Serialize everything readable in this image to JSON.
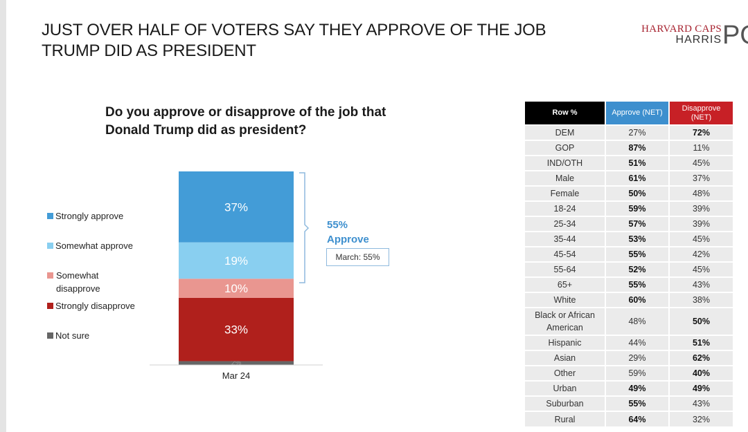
{
  "page": {
    "title": "JUST OVER HALF OF VOTERS SAY THEY APPROVE OF THE JOB TRUMP DID AS PRESIDENT",
    "logo": {
      "line1": "HARVARD CAPS",
      "line2": "HARRIS",
      "mark": "PO"
    },
    "question": "Do you approve or disapprove of the job that Donald Trump did as president?"
  },
  "chart_data": {
    "type": "bar",
    "stacked": true,
    "categories": [
      "Mar 24"
    ],
    "series": [
      {
        "name": "Strongly approve",
        "values": [
          37
        ],
        "label": "37%",
        "color": "#439cd7"
      },
      {
        "name": "Somewhat approve",
        "values": [
          19
        ],
        "label": "19%",
        "color": "#89cff0"
      },
      {
        "name": "Somewhat disapprove",
        "values": [
          10
        ],
        "label": "10%",
        "color": "#e99690"
      },
      {
        "name": "Strongly disapprove",
        "values": [
          33
        ],
        "label": "33%",
        "color": "#b0201c"
      },
      {
        "name": "Not sure",
        "values": [
          2
        ],
        "label": "2%",
        "color": "#666666"
      }
    ],
    "legend": [
      {
        "name": "Strongly approve",
        "color": "#439cd7"
      },
      {
        "name": "Somewhat approve",
        "color": "#89cff0"
      },
      {
        "name": "Somewhat disapprove",
        "color": "#e99690"
      },
      {
        "name": "Strongly disapprove",
        "color": "#b0201c"
      },
      {
        "name": "Not sure",
        "color": "#666666"
      }
    ],
    "annotation": {
      "value": "55%",
      "label": "Approve",
      "comparison": "March: 55%"
    },
    "xlabel": "",
    "ylabel": "",
    "ylim": [
      0,
      101
    ]
  },
  "table": {
    "headers": {
      "row": "Row %",
      "approve": "Approve (NET)",
      "disapprove": "Disapprove (NET)"
    },
    "rows": [
      {
        "label": "DEM",
        "approve": "27%",
        "disapprove": "72%",
        "bold": "disapprove"
      },
      {
        "label": "GOP",
        "approve": "87%",
        "disapprove": "11%",
        "bold": "approve"
      },
      {
        "label": "IND/OTH",
        "approve": "51%",
        "disapprove": "45%",
        "bold": "approve"
      },
      {
        "label": "Male",
        "approve": "61%",
        "disapprove": "37%",
        "bold": "approve"
      },
      {
        "label": "Female",
        "approve": "50%",
        "disapprove": "48%",
        "bold": "approve"
      },
      {
        "label": "18-24",
        "approve": "59%",
        "disapprove": "39%",
        "bold": "approve"
      },
      {
        "label": "25-34",
        "approve": "57%",
        "disapprove": "39%",
        "bold": "approve"
      },
      {
        "label": "35-44",
        "approve": "53%",
        "disapprove": "45%",
        "bold": "approve"
      },
      {
        "label": "45-54",
        "approve": "55%",
        "disapprove": "42%",
        "bold": "approve"
      },
      {
        "label": "55-64",
        "approve": "52%",
        "disapprove": "45%",
        "bold": "approve"
      },
      {
        "label": "65+",
        "approve": "55%",
        "disapprove": "43%",
        "bold": "approve"
      },
      {
        "label": "White",
        "approve": "60%",
        "disapprove": "38%",
        "bold": "approve"
      },
      {
        "label": "Black or African American",
        "approve": "48%",
        "disapprove": "50%",
        "bold": "disapprove"
      },
      {
        "label": "Hispanic",
        "approve": "44%",
        "disapprove": "51%",
        "bold": "disapprove"
      },
      {
        "label": "Asian",
        "approve": "29%",
        "disapprove": "62%",
        "bold": "disapprove"
      },
      {
        "label": "Other",
        "approve": "59%",
        "disapprove": "40%",
        "bold": "disapprove"
      },
      {
        "label": "Urban",
        "approve": "49%",
        "disapprove": "49%",
        "bold": "both"
      },
      {
        "label": "Suburban",
        "approve": "55%",
        "disapprove": "43%",
        "bold": "approve"
      },
      {
        "label": "Rural",
        "approve": "64%",
        "disapprove": "32%",
        "bold": "approve"
      }
    ]
  }
}
